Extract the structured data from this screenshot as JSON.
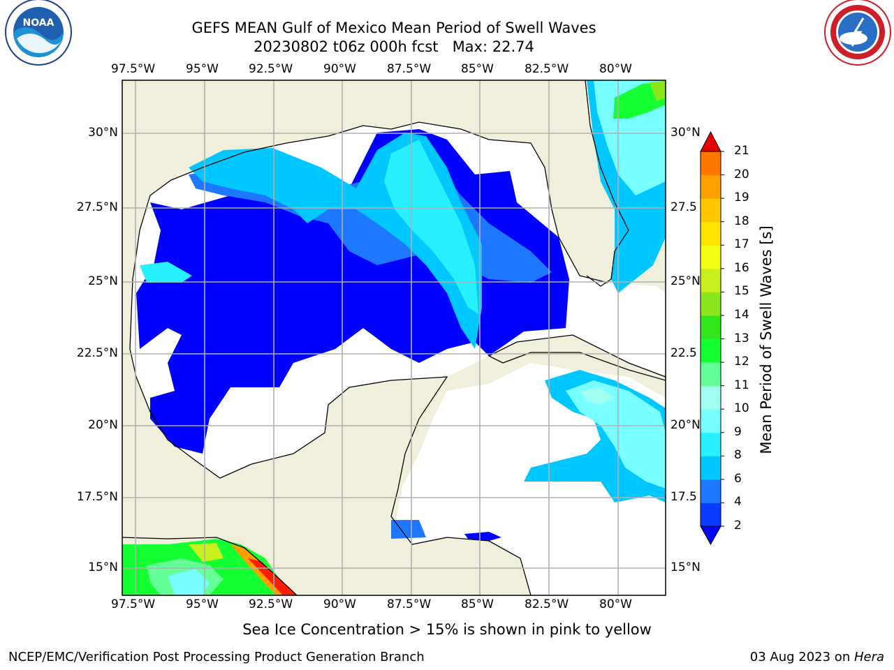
{
  "header": {
    "title_line1": "GEFS MEAN Gulf of Mexico Mean Period of Swell Waves",
    "title_line2": "20230802 t06z 000h fcst   Max: 22.74"
  },
  "logos": {
    "left_name": "noaa-logo",
    "left_text": "NOAA",
    "right_name": "nws-logo"
  },
  "axes": {
    "lon_labels": [
      "97.5°W",
      "95°W",
      "92.5°W",
      "90°W",
      "87.5°W",
      "85°W",
      "82.5°W",
      "80°W"
    ],
    "lat_labels_left": [
      "30°N",
      "27.5°N",
      "25°N",
      "22.5°N",
      "20°N",
      "17.5°N",
      "15°N"
    ],
    "lat_labels_right": [
      "30°N",
      "27.5",
      "25°N",
      "22.5",
      "20°N",
      "17.5",
      "15°N"
    ]
  },
  "colorbar": {
    "label": "Mean Period of Swell Waves [s]",
    "ticks": [
      "2",
      "4",
      "6",
      "8",
      "9",
      "10",
      "11",
      "12",
      "13",
      "14",
      "15",
      "16",
      "17",
      "18",
      "19",
      "20",
      "21"
    ],
    "colors": [
      "#0a3cff",
      "#1e78ff",
      "#00c8ff",
      "#28f0ff",
      "#78ffff",
      "#a0fff0",
      "#64ff96",
      "#14ff32",
      "#32e61e",
      "#8ce61e",
      "#c8f01e",
      "#f0ff14",
      "#ffe600",
      "#ffc800",
      "#ffa000",
      "#ff7800",
      "#ff4b00",
      "#ff1e00"
    ],
    "under_color": "#0000ff",
    "over_color": "#e60000"
  },
  "map_colors": {
    "land": "#efefdc",
    "ocean_below_range": "#ffffff",
    "grid": "#b0b0b0"
  },
  "footer": {
    "note": "Sea Ice Concentration > 15% is shown in pink to yellow",
    "credit": "NCEP/EMC/Verification Post Processing Product Generation Branch",
    "date": "03 Aug 2023 on ",
    "host": "Hera"
  }
}
